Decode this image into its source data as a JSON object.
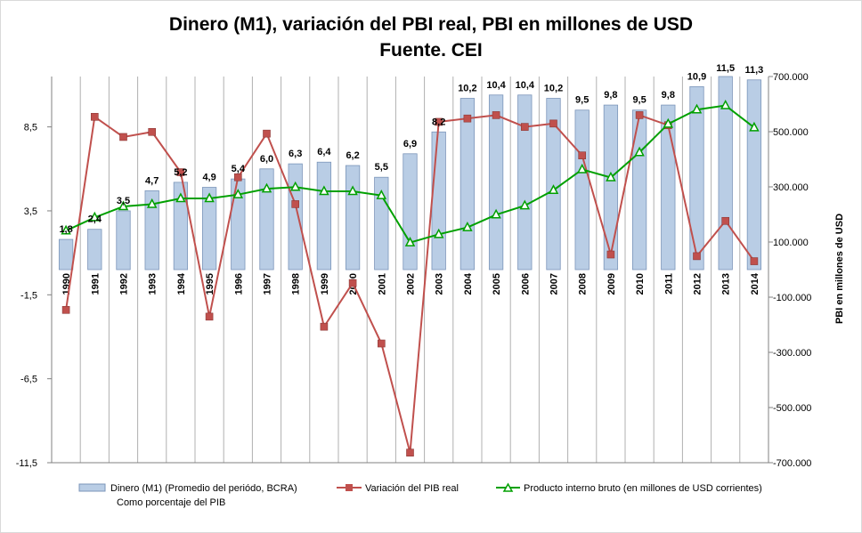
{
  "chart_data": {
    "type": "bar+line",
    "title_line1": "Dinero (M1), variación del PBI real, PBI en millones de USD",
    "title_line2": "Fuente. CEI",
    "categories": [
      "1990",
      "1991",
      "1992",
      "1993",
      "1994",
      "1995",
      "1996",
      "1997",
      "1998",
      "1999",
      "2000",
      "2001",
      "2002",
      "2003",
      "2004",
      "2005",
      "2006",
      "2007",
      "2008",
      "2009",
      "2010",
      "2011",
      "2012",
      "2013",
      "2014"
    ],
    "series": [
      {
        "name": "Dinero (M1) (Promedio del periódo, BCRA)",
        "name_line2": "Como porcentaje del PIB",
        "type": "bar",
        "axis": "left",
        "color": "#b9cde5",
        "values": [
          1.8,
          2.4,
          3.5,
          4.7,
          5.2,
          4.9,
          5.4,
          6.0,
          6.3,
          6.4,
          6.2,
          5.5,
          6.9,
          8.2,
          10.2,
          10.4,
          10.4,
          10.2,
          9.5,
          9.8,
          9.5,
          9.8,
          10.9,
          11.5,
          11.3
        ],
        "labels": [
          "1,8",
          "2,4",
          "3,5",
          "4,7",
          "5,2",
          "4,9",
          "5,4",
          "6,0",
          "6,3",
          "6,4",
          "6,2",
          "5,5",
          "6,9",
          "8,2",
          "10,2",
          "10,4",
          "10,4",
          "10,2",
          "9,5",
          "9,8",
          "9,5",
          "9,8",
          "10,9",
          "11,5",
          "11,3"
        ]
      },
      {
        "name": "Variación del PIB real",
        "type": "line",
        "axis": "left",
        "color": "#c0504d",
        "values": [
          -2.4,
          9.1,
          7.9,
          8.2,
          5.8,
          -2.8,
          5.5,
          8.1,
          3.9,
          -3.4,
          -0.8,
          -4.4,
          -10.9,
          8.8,
          9.0,
          9.2,
          8.5,
          8.7,
          6.8,
          0.9,
          9.2,
          8.6,
          0.8,
          2.9,
          0.5
        ]
      },
      {
        "name": "Producto interno bruto (en millones de USD corrientes)",
        "type": "line",
        "axis": "right",
        "color": "#00a000",
        "values": [
          141000,
          189000,
          229000,
          237000,
          258000,
          258000,
          272000,
          293000,
          299000,
          284000,
          284000,
          269000,
          98000,
          128000,
          153000,
          199000,
          232000,
          288000,
          363000,
          334000,
          425000,
          528000,
          580000,
          595000,
          515000
        ]
      }
    ],
    "y_left": {
      "min": -11.5,
      "max": 11.5,
      "ticks": [
        8.5,
        3.5,
        -1.5,
        -6.5,
        -11.5
      ],
      "tick_labels": [
        "8,5",
        "3,5",
        "-1,5",
        "-6,5",
        "-11,5"
      ]
    },
    "y_right": {
      "min": -700000,
      "max": 700000,
      "ticks": [
        700000,
        500000,
        300000,
        100000,
        -100000,
        -300000,
        -500000,
        -700000
      ],
      "tick_labels": [
        "700.000",
        "500.000",
        "300.000",
        "100.000",
        "-100.000",
        "-300.000",
        "-500.000",
        "-700.000"
      ],
      "label": "PBI en millones de USD"
    },
    "grid": "vertical",
    "legend_position": "bottom"
  }
}
